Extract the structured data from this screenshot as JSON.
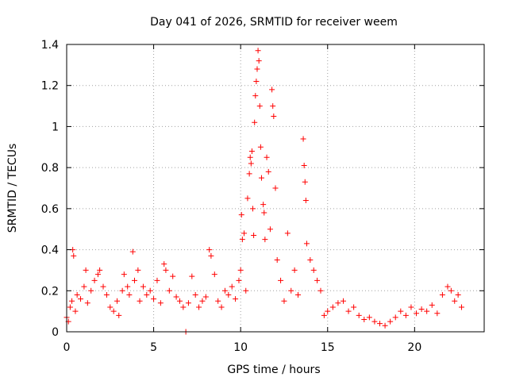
{
  "chart_data": {
    "type": "scatter",
    "title": "Day 041 of 2026, SRMTID for receiver weem",
    "xlabel": "GPS time / hours",
    "ylabel": "SRMTID / TECUs",
    "xlim": [
      0,
      24
    ],
    "ylim": [
      0,
      1.4
    ],
    "xticks": [
      0,
      5,
      10,
      15,
      20
    ],
    "xtick_labels": [
      "0",
      "5",
      "10",
      "15",
      "20"
    ],
    "yticks": [
      0,
      0.2,
      0.4,
      0.6,
      0.8,
      1.0,
      1.2,
      1.4
    ],
    "ytick_labels": [
      "0",
      "0.2",
      "0.4",
      "0.6",
      "0.8",
      "1",
      "1.2",
      "1.4"
    ],
    "grid": true,
    "marker": "+",
    "color": "#ff0000",
    "series": [
      {
        "name": "weem",
        "points": [
          [
            0.0,
            0.07
          ],
          [
            0.1,
            0.05
          ],
          [
            0.2,
            0.12
          ],
          [
            0.3,
            0.15
          ],
          [
            0.35,
            0.4
          ],
          [
            0.4,
            0.37
          ],
          [
            0.5,
            0.1
          ],
          [
            0.6,
            0.18
          ],
          [
            0.8,
            0.16
          ],
          [
            1.0,
            0.22
          ],
          [
            1.1,
            0.3
          ],
          [
            1.2,
            0.14
          ],
          [
            1.4,
            0.2
          ],
          [
            1.6,
            0.25
          ],
          [
            1.8,
            0.28
          ],
          [
            1.9,
            0.3
          ],
          [
            2.1,
            0.22
          ],
          [
            2.3,
            0.18
          ],
          [
            2.5,
            0.12
          ],
          [
            2.7,
            0.1
          ],
          [
            2.9,
            0.15
          ],
          [
            3.0,
            0.08
          ],
          [
            3.2,
            0.2
          ],
          [
            3.3,
            0.28
          ],
          [
            3.5,
            0.22
          ],
          [
            3.6,
            0.18
          ],
          [
            3.8,
            0.39
          ],
          [
            3.9,
            0.25
          ],
          [
            4.1,
            0.3
          ],
          [
            4.2,
            0.15
          ],
          [
            4.4,
            0.22
          ],
          [
            4.6,
            0.18
          ],
          [
            4.8,
            0.2
          ],
          [
            5.0,
            0.16
          ],
          [
            5.2,
            0.25
          ],
          [
            5.4,
            0.14
          ],
          [
            5.6,
            0.33
          ],
          [
            5.7,
            0.3
          ],
          [
            5.9,
            0.2
          ],
          [
            6.1,
            0.27
          ],
          [
            6.3,
            0.17
          ],
          [
            6.5,
            0.15
          ],
          [
            6.7,
            0.12
          ],
          [
            6.85,
            0.0
          ],
          [
            7.0,
            0.14
          ],
          [
            7.2,
            0.27
          ],
          [
            7.4,
            0.18
          ],
          [
            7.6,
            0.12
          ],
          [
            7.8,
            0.15
          ],
          [
            8.0,
            0.17
          ],
          [
            8.2,
            0.4
          ],
          [
            8.3,
            0.37
          ],
          [
            8.5,
            0.28
          ],
          [
            8.7,
            0.15
          ],
          [
            8.9,
            0.12
          ],
          [
            9.1,
            0.2
          ],
          [
            9.3,
            0.18
          ],
          [
            9.5,
            0.22
          ],
          [
            9.7,
            0.16
          ],
          [
            9.9,
            0.25
          ],
          [
            10.0,
            0.3
          ],
          [
            10.05,
            0.57
          ],
          [
            10.1,
            0.45
          ],
          [
            10.2,
            0.48
          ],
          [
            10.3,
            0.2
          ],
          [
            10.4,
            0.65
          ],
          [
            10.5,
            0.77
          ],
          [
            10.55,
            0.85
          ],
          [
            10.6,
            0.82
          ],
          [
            10.65,
            0.88
          ],
          [
            10.7,
            0.6
          ],
          [
            10.75,
            0.47
          ],
          [
            10.8,
            1.02
          ],
          [
            10.85,
            1.15
          ],
          [
            10.9,
            1.22
          ],
          [
            10.95,
            1.28
          ],
          [
            11.0,
            1.37
          ],
          [
            11.05,
            1.32
          ],
          [
            11.1,
            1.1
          ],
          [
            11.15,
            0.9
          ],
          [
            11.2,
            0.75
          ],
          [
            11.3,
            0.62
          ],
          [
            11.35,
            0.58
          ],
          [
            11.4,
            0.45
          ],
          [
            11.5,
            0.85
          ],
          [
            11.6,
            0.78
          ],
          [
            11.7,
            0.5
          ],
          [
            11.8,
            1.18
          ],
          [
            11.85,
            1.1
          ],
          [
            11.9,
            1.05
          ],
          [
            12.0,
            0.7
          ],
          [
            12.1,
            0.35
          ],
          [
            12.3,
            0.25
          ],
          [
            12.5,
            0.15
          ],
          [
            12.7,
            0.48
          ],
          [
            12.9,
            0.2
          ],
          [
            13.1,
            0.3
          ],
          [
            13.3,
            0.18
          ],
          [
            13.6,
            0.94
          ],
          [
            13.65,
            0.81
          ],
          [
            13.7,
            0.73
          ],
          [
            13.75,
            0.64
          ],
          [
            13.8,
            0.43
          ],
          [
            14.0,
            0.35
          ],
          [
            14.2,
            0.3
          ],
          [
            14.4,
            0.25
          ],
          [
            14.6,
            0.2
          ],
          [
            14.8,
            0.08
          ],
          [
            15.0,
            0.1
          ],
          [
            15.3,
            0.12
          ],
          [
            15.6,
            0.14
          ],
          [
            15.9,
            0.15
          ],
          [
            16.2,
            0.1
          ],
          [
            16.5,
            0.12
          ],
          [
            16.8,
            0.08
          ],
          [
            17.1,
            0.06
          ],
          [
            17.4,
            0.07
          ],
          [
            17.7,
            0.05
          ],
          [
            18.0,
            0.04
          ],
          [
            18.3,
            0.03
          ],
          [
            18.6,
            0.05
          ],
          [
            18.9,
            0.07
          ],
          [
            19.2,
            0.1
          ],
          [
            19.5,
            0.08
          ],
          [
            19.8,
            0.12
          ],
          [
            20.1,
            0.09
          ],
          [
            20.4,
            0.11
          ],
          [
            20.7,
            0.1
          ],
          [
            21.0,
            0.13
          ],
          [
            21.3,
            0.09
          ],
          [
            21.6,
            0.18
          ],
          [
            21.9,
            0.22
          ],
          [
            22.1,
            0.2
          ],
          [
            22.3,
            0.15
          ],
          [
            22.5,
            0.18
          ],
          [
            22.7,
            0.12
          ]
        ]
      }
    ]
  }
}
